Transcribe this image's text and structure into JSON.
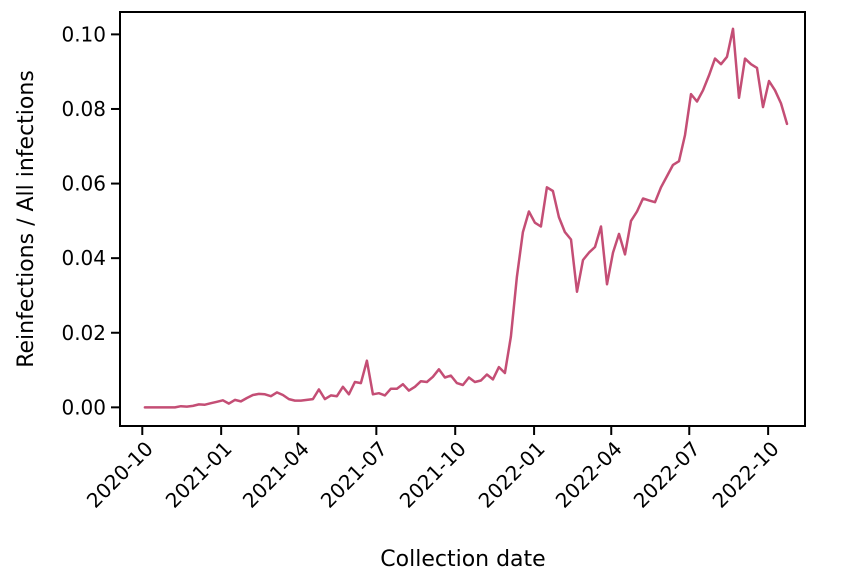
{
  "chart_data": {
    "type": "line",
    "title": "",
    "xlabel": "Collection date",
    "ylabel": "Reinfections / All infections",
    "xlim": [
      "2020-09-05",
      "2022-11-13"
    ],
    "ylim": [
      -0.005,
      0.106
    ],
    "grid": false,
    "x_ticks": [
      "2020-10-01",
      "2021-01-01",
      "2021-04-01",
      "2021-07-01",
      "2021-10-01",
      "2022-01-01",
      "2022-04-01",
      "2022-07-01",
      "2022-10-01"
    ],
    "x_tick_labels": [
      "2020-10",
      "2021-01",
      "2021-04",
      "2021-07",
      "2021-10",
      "2022-01",
      "2022-04",
      "2022-07",
      "2022-10"
    ],
    "y_ticks": [
      0.0,
      0.02,
      0.04,
      0.06,
      0.08,
      0.1
    ],
    "y_tick_labels": [
      "0.00",
      "0.02",
      "0.04",
      "0.06",
      "0.08",
      "0.10"
    ],
    "colors": {
      "line": "#c44e75",
      "axis": "#000000"
    },
    "series": [
      {
        "x": [
          "2020-10-04",
          "2020-10-11",
          "2020-10-18",
          "2020-10-25",
          "2020-11-01",
          "2020-11-08",
          "2020-11-15",
          "2020-11-22",
          "2020-11-29",
          "2020-12-06",
          "2020-12-13",
          "2020-12-20",
          "2020-12-27",
          "2021-01-03",
          "2021-01-10",
          "2021-01-17",
          "2021-01-24",
          "2021-01-31",
          "2021-02-07",
          "2021-02-14",
          "2021-02-21",
          "2021-02-28",
          "2021-03-07",
          "2021-03-14",
          "2021-03-21",
          "2021-03-28",
          "2021-04-04",
          "2021-04-11",
          "2021-04-18",
          "2021-04-25",
          "2021-05-02",
          "2021-05-09",
          "2021-05-16",
          "2021-05-23",
          "2021-05-30",
          "2021-06-06",
          "2021-06-13",
          "2021-06-20",
          "2021-06-27",
          "2021-07-04",
          "2021-07-11",
          "2021-07-18",
          "2021-07-25",
          "2021-08-01",
          "2021-08-08",
          "2021-08-15",
          "2021-08-22",
          "2021-08-29",
          "2021-09-05",
          "2021-09-12",
          "2021-09-19",
          "2021-09-26",
          "2021-10-03",
          "2021-10-10",
          "2021-10-17",
          "2021-10-24",
          "2021-10-31",
          "2021-11-07",
          "2021-11-14",
          "2021-11-21",
          "2021-11-28",
          "2021-12-05",
          "2021-12-12",
          "2021-12-19",
          "2021-12-26",
          "2022-01-02",
          "2022-01-09",
          "2022-01-16",
          "2022-01-23",
          "2022-01-30",
          "2022-02-06",
          "2022-02-13",
          "2022-02-20",
          "2022-02-27",
          "2022-03-06",
          "2022-03-13",
          "2022-03-20",
          "2022-03-27",
          "2022-04-03",
          "2022-04-10",
          "2022-04-17",
          "2022-04-24",
          "2022-05-01",
          "2022-05-08",
          "2022-05-15",
          "2022-05-22",
          "2022-05-29",
          "2022-06-05",
          "2022-06-12",
          "2022-06-19",
          "2022-06-26",
          "2022-07-03",
          "2022-07-10",
          "2022-07-17",
          "2022-07-24",
          "2022-07-31",
          "2022-08-07",
          "2022-08-14",
          "2022-08-21",
          "2022-08-28",
          "2022-09-04",
          "2022-09-11",
          "2022-09-18",
          "2022-09-25",
          "2022-10-02",
          "2022-10-09",
          "2022-10-16",
          "2022-10-23"
        ],
        "y": [
          0.0,
          0.0,
          0.0,
          0.0,
          0.0,
          0.0,
          0.0003,
          0.0002,
          0.0004,
          0.0008,
          0.0007,
          0.0011,
          0.0015,
          0.0019,
          0.001,
          0.002,
          0.0016,
          0.0025,
          0.0033,
          0.0036,
          0.0035,
          0.003,
          0.004,
          0.0033,
          0.0022,
          0.0018,
          0.0018,
          0.002,
          0.0022,
          0.0048,
          0.0022,
          0.0032,
          0.003,
          0.0055,
          0.0035,
          0.0068,
          0.0065,
          0.0125,
          0.0035,
          0.0038,
          0.0032,
          0.005,
          0.005,
          0.0062,
          0.0045,
          0.0055,
          0.007,
          0.0068,
          0.0082,
          0.0102,
          0.008,
          0.0085,
          0.0065,
          0.006,
          0.008,
          0.0068,
          0.0072,
          0.0088,
          0.0075,
          0.0108,
          0.0092,
          0.019,
          0.035,
          0.047,
          0.0525,
          0.0495,
          0.0485,
          0.059,
          0.058,
          0.051,
          0.047,
          0.045,
          0.031,
          0.0395,
          0.0415,
          0.043,
          0.0485,
          0.033,
          0.0415,
          0.0465,
          0.041,
          0.05,
          0.0525,
          0.056,
          0.0555,
          0.055,
          0.059,
          0.062,
          0.065,
          0.066,
          0.073,
          0.084,
          0.082,
          0.085,
          0.089,
          0.0935,
          0.092,
          0.094,
          0.1015,
          0.083,
          0.0935,
          0.092,
          0.091,
          0.0805,
          0.0875,
          0.085,
          0.0815,
          0.076
        ]
      }
    ]
  }
}
